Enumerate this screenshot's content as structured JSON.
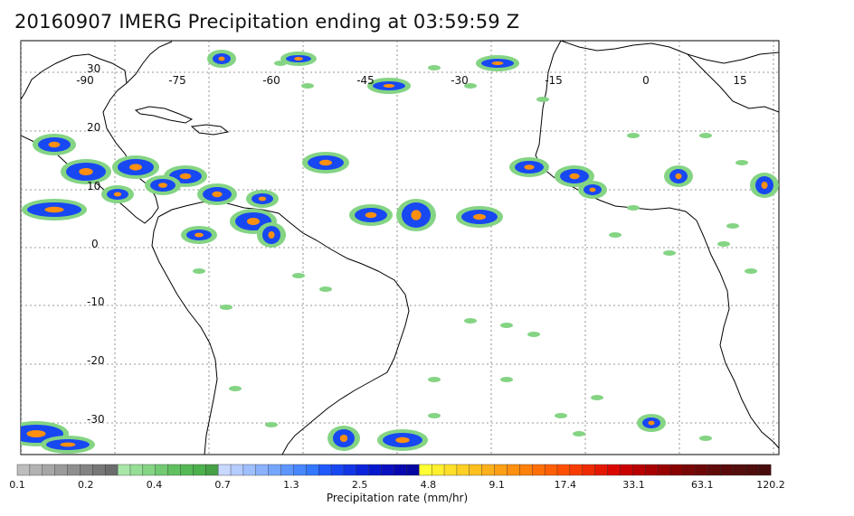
{
  "title": "20160907 IMERG Precipitation ending at 03:59:59 Z",
  "map": {
    "lon_labels": [
      "-90",
      "-75",
      "-60",
      "-45",
      "-30",
      "-15",
      "0",
      "15"
    ],
    "lat_labels": [
      "30",
      "20",
      "10",
      "0",
      "-10",
      "-20",
      "-30"
    ],
    "gridlines": true
  },
  "colorbar": {
    "title": "Precipitation rate (mm/hr)",
    "tick_labels": [
      "0.1",
      "0.2",
      "0.4",
      "0.7",
      "1.3",
      "2.5",
      "4.8",
      "9.1",
      "17.4",
      "33.1",
      "63.1",
      "120.2"
    ],
    "colors": [
      "#bdbdbd",
      "#b2b2b2",
      "#a6a6a6",
      "#9a9a9a",
      "#8e8e8e",
      "#838383",
      "#777777",
      "#6c6c6c",
      "#a8e6a8",
      "#96dd96",
      "#84d484",
      "#72ca72",
      "#60c060",
      "#55b855",
      "#4cb04c",
      "#46a046",
      "#c8d8ff",
      "#b4ccff",
      "#9fbfff",
      "#8ab2ff",
      "#75a5ff",
      "#5e96ff",
      "#4787ff",
      "#3378ff",
      "#1f5aff",
      "#1848f2",
      "#1236e6",
      "#0c24d9",
      "#0618cc",
      "#0a10c0",
      "#0808b0",
      "#0606a0",
      "#ffff33",
      "#ffef2e",
      "#ffdf29",
      "#ffcf24",
      "#ffbf1f",
      "#ffaf1a",
      "#ff9f15",
      "#ff8f10",
      "#ff7f0b",
      "#ff6f08",
      "#ff5f05",
      "#ff4f02",
      "#f83c00",
      "#ee2a00",
      "#e41800",
      "#da0600",
      "#c80000",
      "#b80000",
      "#a80000",
      "#980000",
      "#880000",
      "#780606",
      "#6c0808",
      "#600a0a",
      "#5a0a0a",
      "#540c0c",
      "#4e0c0c",
      "#480c0c"
    ]
  }
}
